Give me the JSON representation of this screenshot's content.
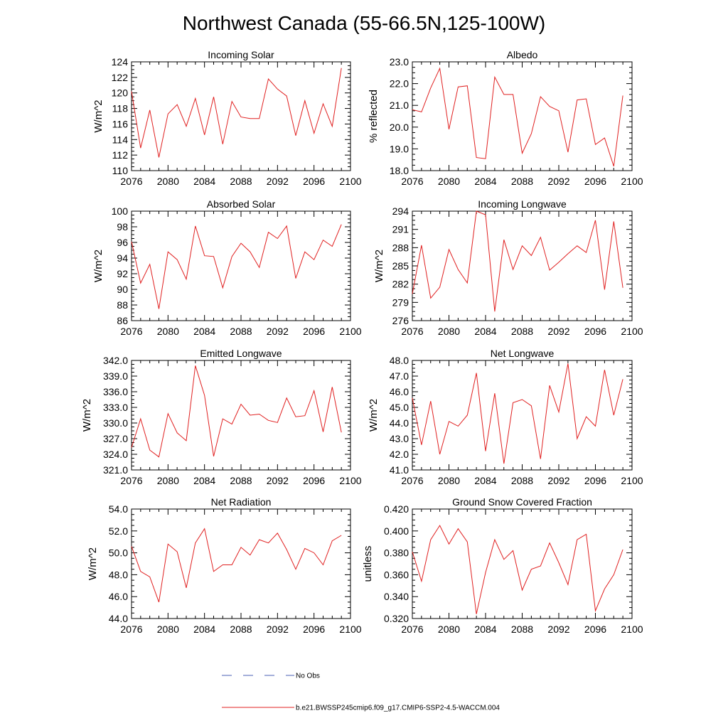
{
  "figure": {
    "title": "Northwest Canada (55-66.5N,125-100W)",
    "legend": [
      {
        "label": "No Obs",
        "style": "dashed",
        "color": "#4a5fb5"
      },
      {
        "label": "b.e21.BWSSP245cmip6.f09_g17.CMIP6-SSP2-4.5-WACCM.004",
        "style": "solid",
        "color": "#e02020"
      }
    ]
  },
  "chart_data": [
    {
      "type": "line",
      "title": "Incoming Solar",
      "ylabel": "W/m^2",
      "xlim": [
        2076,
        2100
      ],
      "xticks": [
        "2076",
        "2080",
        "2084",
        "2088",
        "2092",
        "2096",
        "2100"
      ],
      "ylim": [
        110,
        124
      ],
      "yticks": [
        "110",
        "112",
        "114",
        "116",
        "118",
        "120",
        "122",
        "124"
      ],
      "x": [
        2076,
        2077,
        2078,
        2079,
        2080,
        2081,
        2082,
        2083,
        2084,
        2085,
        2086,
        2087,
        2088,
        2089,
        2090,
        2091,
        2092,
        2093,
        2094,
        2095,
        2096,
        2097,
        2098,
        2099
      ],
      "series": [
        {
          "color": "#e02020",
          "values": [
            120.2,
            112.9,
            117.8,
            111.7,
            117.3,
            118.5,
            115.7,
            119.3,
            114.6,
            119.5,
            113.4,
            118.9,
            116.9,
            116.7,
            116.7,
            121.8,
            120.5,
            119.6,
            114.5,
            119.0,
            114.8,
            118.6,
            115.7,
            123.2
          ]
        }
      ]
    },
    {
      "type": "line",
      "title": "Albedo",
      "ylabel": "% reflected",
      "xlim": [
        2076,
        2100
      ],
      "xticks": [
        "2076",
        "2080",
        "2084",
        "2088",
        "2092",
        "2096",
        "2100"
      ],
      "ylim": [
        18.0,
        23.0
      ],
      "yticks": [
        "18.0",
        "19.0",
        "20.0",
        "21.0",
        "22.0",
        "23.0"
      ],
      "x": [
        2076,
        2077,
        2078,
        2079,
        2080,
        2081,
        2082,
        2083,
        2084,
        2085,
        2086,
        2087,
        2088,
        2089,
        2090,
        2091,
        2092,
        2093,
        2094,
        2095,
        2096,
        2097,
        2098,
        2099
      ],
      "series": [
        {
          "color": "#e02020",
          "values": [
            20.8,
            20.7,
            21.8,
            22.7,
            19.9,
            21.85,
            21.9,
            18.6,
            18.55,
            22.3,
            21.5,
            21.5,
            18.8,
            19.7,
            21.4,
            20.95,
            20.75,
            18.85,
            21.25,
            21.3,
            19.2,
            19.5,
            18.2,
            21.45
          ]
        }
      ]
    },
    {
      "type": "line",
      "title": "Absorbed Solar",
      "ylabel": "W/m^2",
      "xlim": [
        2076,
        2100
      ],
      "xticks": [
        "2076",
        "2080",
        "2084",
        "2088",
        "2092",
        "2096",
        "2100"
      ],
      "ylim": [
        86,
        100
      ],
      "yticks": [
        "86",
        "88",
        "90",
        "92",
        "94",
        "96",
        "98",
        "100"
      ],
      "x": [
        2076,
        2077,
        2078,
        2079,
        2080,
        2081,
        2082,
        2083,
        2084,
        2085,
        2086,
        2087,
        2088,
        2089,
        2090,
        2091,
        2092,
        2093,
        2094,
        2095,
        2096,
        2097,
        2098,
        2099
      ],
      "series": [
        {
          "color": "#e02020",
          "values": [
            96.1,
            90.8,
            93.2,
            87.5,
            94.8,
            93.8,
            91.3,
            98.1,
            94.3,
            94.2,
            90.2,
            94.2,
            95.9,
            94.8,
            92.8,
            97.3,
            96.5,
            98.1,
            91.4,
            94.8,
            93.8,
            96.3,
            95.5,
            98.3
          ]
        }
      ]
    },
    {
      "type": "line",
      "title": "Incoming Longwave",
      "ylabel": "W/m^2",
      "xlim": [
        2076,
        2100
      ],
      "xticks": [
        "2076",
        "2080",
        "2084",
        "2088",
        "2092",
        "2096",
        "2100"
      ],
      "ylim": [
        276,
        294
      ],
      "yticks": [
        "276",
        "279",
        "282",
        "285",
        "288",
        "291",
        "294"
      ],
      "x": [
        2076,
        2077,
        2078,
        2079,
        2080,
        2081,
        2082,
        2083,
        2084,
        2085,
        2086,
        2087,
        2088,
        2089,
        2090,
        2091,
        2092,
        2093,
        2094,
        2095,
        2096,
        2097,
        2098,
        2099
      ],
      "series": [
        {
          "color": "#e02020",
          "values": [
            280.4,
            288.4,
            279.7,
            281.5,
            287.7,
            284.4,
            282.2,
            294.0,
            293.4,
            277.5,
            289.3,
            284.4,
            288.3,
            286.7,
            289.7,
            284.3,
            285.6,
            287.0,
            288.3,
            287.2,
            292.5,
            281.1,
            292.3,
            281.4
          ]
        }
      ]
    },
    {
      "type": "line",
      "title": "Emitted Longwave",
      "ylabel": "W/m^2",
      "xlim": [
        2076,
        2100
      ],
      "xticks": [
        "2076",
        "2080",
        "2084",
        "2088",
        "2092",
        "2096",
        "2100"
      ],
      "ylim": [
        321.0,
        342.0
      ],
      "yticks": [
        "321.0",
        "324.0",
        "327.0",
        "330.0",
        "333.0",
        "336.0",
        "339.0",
        "342.0"
      ],
      "x": [
        2076,
        2077,
        2078,
        2079,
        2080,
        2081,
        2082,
        2083,
        2084,
        2085,
        2086,
        2087,
        2088,
        2089,
        2090,
        2091,
        2092,
        2093,
        2094,
        2095,
        2096,
        2097,
        2098,
        2099
      ],
      "series": [
        {
          "color": "#e02020",
          "values": [
            325.3,
            330.8,
            324.8,
            323.5,
            331.8,
            328.1,
            326.6,
            341.0,
            335.3,
            323.6,
            330.8,
            329.8,
            333.6,
            331.5,
            331.7,
            330.5,
            330.1,
            334.8,
            331.2,
            331.4,
            336.2,
            328.3,
            336.9,
            328.2
          ]
        }
      ]
    },
    {
      "type": "line",
      "title": "Net Longwave",
      "ylabel": "W/m^2",
      "xlim": [
        2076,
        2100
      ],
      "xticks": [
        "2076",
        "2080",
        "2084",
        "2088",
        "2092",
        "2096",
        "2100"
      ],
      "ylim": [
        41.0,
        48.0
      ],
      "yticks": [
        "41.0",
        "42.0",
        "43.0",
        "44.0",
        "45.0",
        "46.0",
        "47.0",
        "48.0"
      ],
      "x": [
        2076,
        2077,
        2078,
        2079,
        2080,
        2081,
        2082,
        2083,
        2084,
        2085,
        2086,
        2087,
        2088,
        2089,
        2090,
        2091,
        2092,
        2093,
        2094,
        2095,
        2096,
        2097,
        2098,
        2099
      ],
      "series": [
        {
          "color": "#e02020",
          "values": [
            45.6,
            42.6,
            45.4,
            42.0,
            44.1,
            43.8,
            44.5,
            47.2,
            42.2,
            45.9,
            41.4,
            45.3,
            45.5,
            45.1,
            41.7,
            46.4,
            44.7,
            47.8,
            43.0,
            44.4,
            43.8,
            47.4,
            44.5,
            46.8
          ]
        }
      ]
    },
    {
      "type": "line",
      "title": "Net Radiation",
      "ylabel": "W/m^2",
      "xlim": [
        2076,
        2100
      ],
      "xticks": [
        "2076",
        "2080",
        "2084",
        "2088",
        "2092",
        "2096",
        "2100"
      ],
      "ylim": [
        44.0,
        54.0
      ],
      "yticks": [
        "44.0",
        "46.0",
        "48.0",
        "50.0",
        "52.0",
        "54.0"
      ],
      "x": [
        2076,
        2077,
        2078,
        2079,
        2080,
        2081,
        2082,
        2083,
        2084,
        2085,
        2086,
        2087,
        2088,
        2089,
        2090,
        2091,
        2092,
        2093,
        2094,
        2095,
        2096,
        2097,
        2098,
        2099
      ],
      "series": [
        {
          "color": "#e02020",
          "values": [
            50.6,
            48.3,
            47.8,
            45.5,
            50.8,
            50.1,
            46.8,
            50.9,
            52.2,
            48.3,
            48.9,
            48.9,
            50.5,
            49.8,
            51.2,
            50.9,
            51.8,
            50.3,
            48.5,
            50.4,
            50.0,
            48.9,
            51.1,
            51.6
          ]
        }
      ]
    },
    {
      "type": "line",
      "title": "Ground Snow Covered Fraction",
      "ylabel": "unitless",
      "xlim": [
        2076,
        2100
      ],
      "xticks": [
        "2076",
        "2080",
        "2084",
        "2088",
        "2092",
        "2096",
        "2100"
      ],
      "ylim": [
        0.32,
        0.42
      ],
      "yticks": [
        "0.320",
        "0.340",
        "0.360",
        "0.380",
        "0.400",
        "0.420"
      ],
      "x": [
        2076,
        2077,
        2078,
        2079,
        2080,
        2081,
        2082,
        2083,
        2084,
        2085,
        2086,
        2087,
        2088,
        2089,
        2090,
        2091,
        2092,
        2093,
        2094,
        2095,
        2096,
        2097,
        2098,
        2099
      ],
      "series": [
        {
          "color": "#e02020",
          "values": [
            0.381,
            0.354,
            0.392,
            0.405,
            0.388,
            0.402,
            0.39,
            0.324,
            0.362,
            0.392,
            0.374,
            0.382,
            0.346,
            0.365,
            0.368,
            0.389,
            0.371,
            0.351,
            0.392,
            0.397,
            0.327,
            0.347,
            0.36,
            0.383
          ]
        }
      ]
    }
  ]
}
